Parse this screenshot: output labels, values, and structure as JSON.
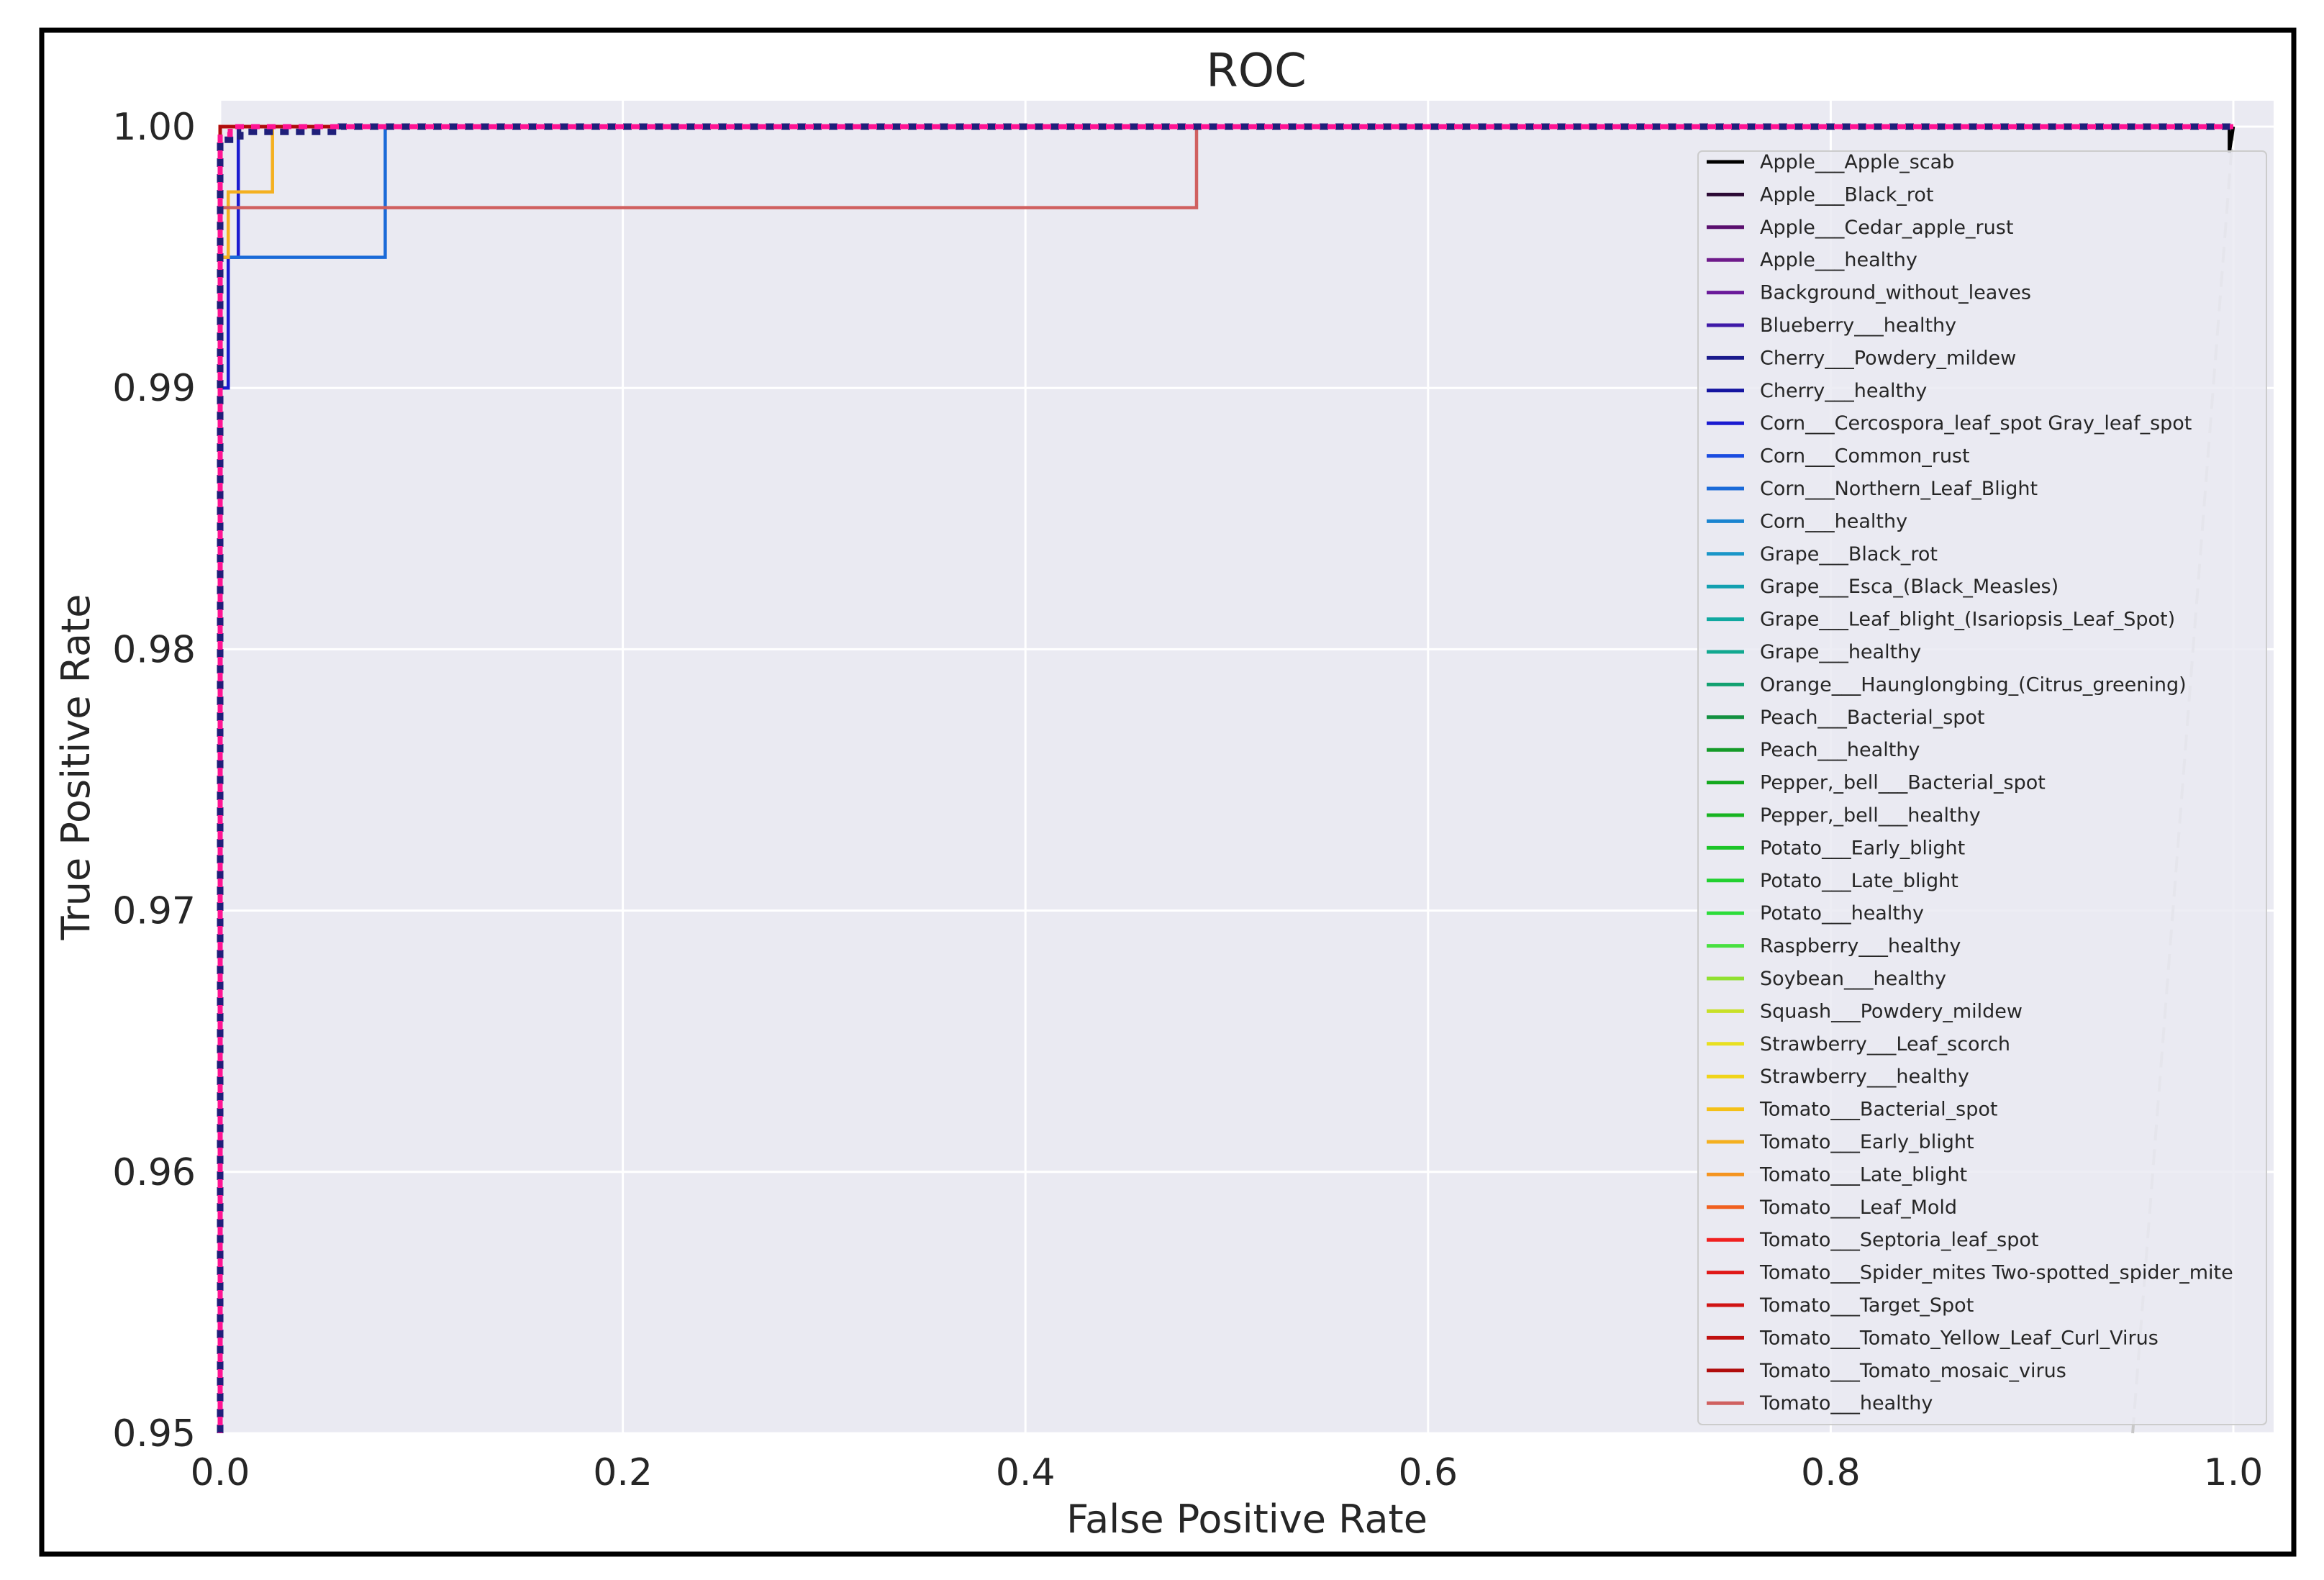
{
  "chart_data": {
    "type": "line",
    "title": "ROC",
    "xlabel": "False Positive Rate",
    "ylabel": "True Positive Rate",
    "xlim": [
      0.0,
      1.0
    ],
    "ylim": [
      0.95,
      1.0
    ],
    "xticks": [
      "0.0",
      "0.2",
      "0.4",
      "0.6",
      "0.8",
      "1.0"
    ],
    "xtick_values": [
      0.0,
      0.2,
      0.4,
      0.6,
      0.8,
      1.0
    ],
    "yticks": [
      "1.00",
      "0.99",
      "0.98",
      "0.97",
      "0.96",
      "0.95"
    ],
    "ytick_values": [
      1.0,
      0.99,
      0.98,
      0.97,
      0.96,
      0.95
    ],
    "grid": true,
    "legend_position": "right",
    "colors": {
      "background": "#eaeaf2",
      "grid": "#ffffff",
      "frame": "#000000",
      "chance_line": "#c8c8c8",
      "micro_avg": "#1f1f7a",
      "macro_avg": "#ff1493"
    },
    "series": [
      {
        "name": "Apple___Apple_scab",
        "color": "#000000",
        "points": [
          [
            0,
            0.95
          ],
          [
            0,
            1
          ],
          [
            0.998,
            1
          ],
          [
            0.998,
            0.999
          ],
          [
            1,
            1
          ]
        ]
      },
      {
        "name": "Apple___Black_rot",
        "color": "#2c0a35",
        "points": [
          [
            0,
            0.95
          ],
          [
            0,
            1
          ],
          [
            1,
            1
          ]
        ]
      },
      {
        "name": "Apple___Cedar_apple_rust",
        "color": "#5a0f6e",
        "points": [
          [
            0,
            0.95
          ],
          [
            0,
            1
          ],
          [
            1,
            1
          ]
        ]
      },
      {
        "name": "Apple___healthy",
        "color": "#6e1a8a",
        "points": [
          [
            0,
            0.95
          ],
          [
            0,
            1
          ],
          [
            1,
            1
          ]
        ]
      },
      {
        "name": "Background_without_leaves",
        "color": "#6a1a9a",
        "points": [
          [
            0,
            0.95
          ],
          [
            0,
            1
          ],
          [
            1,
            1
          ]
        ]
      },
      {
        "name": "Blueberry___healthy",
        "color": "#3f1aa8",
        "points": [
          [
            0,
            0.95
          ],
          [
            0,
            1
          ],
          [
            1,
            1
          ]
        ]
      },
      {
        "name": "Cherry___Powdery_mildew",
        "color": "#1a1a8c",
        "points": [
          [
            0,
            0.95
          ],
          [
            0,
            1
          ],
          [
            1,
            1
          ]
        ]
      },
      {
        "name": "Cherry___healthy",
        "color": "#1414a0",
        "points": [
          [
            0,
            0.95
          ],
          [
            0,
            1
          ],
          [
            1,
            1
          ]
        ]
      },
      {
        "name": "Corn___Cercospora_leaf_spot Gray_leaf_spot",
        "color": "#1a1ad0",
        "points": [
          [
            0,
            0.95
          ],
          [
            0,
            0.99
          ],
          [
            0.004,
            0.99
          ],
          [
            0.004,
            0.995
          ],
          [
            0.009,
            0.995
          ],
          [
            0.009,
            1
          ],
          [
            1,
            1
          ]
        ]
      },
      {
        "name": "Corn___Common_rust",
        "color": "#1a4ce0",
        "points": [
          [
            0,
            0.95
          ],
          [
            0,
            1
          ],
          [
            1,
            1
          ]
        ]
      },
      {
        "name": "Corn___Northern_Leaf_Blight",
        "color": "#1a6ad8",
        "points": [
          [
            0,
            0.95
          ],
          [
            0,
            0.995
          ],
          [
            0.082,
            0.995
          ],
          [
            0.082,
            1
          ],
          [
            1,
            1
          ]
        ]
      },
      {
        "name": "Corn___healthy",
        "color": "#1a84d0",
        "points": [
          [
            0,
            0.95
          ],
          [
            0,
            1
          ],
          [
            1,
            1
          ]
        ]
      },
      {
        "name": "Grape___Black_rot",
        "color": "#1a96c8",
        "points": [
          [
            0,
            0.95
          ],
          [
            0,
            1
          ],
          [
            1,
            1
          ]
        ]
      },
      {
        "name": "Grape___Esca_(Black_Measles)",
        "color": "#12a0b0",
        "points": [
          [
            0,
            0.95
          ],
          [
            0,
            1
          ],
          [
            1,
            1
          ]
        ]
      },
      {
        "name": "Grape___Leaf_blight_(Isariopsis_Leaf_Spot)",
        "color": "#10a8a0",
        "points": [
          [
            0,
            0.95
          ],
          [
            0,
            1
          ],
          [
            1,
            1
          ]
        ]
      },
      {
        "name": "Grape___healthy",
        "color": "#12a890",
        "points": [
          [
            0,
            0.95
          ],
          [
            0,
            1
          ],
          [
            1,
            1
          ]
        ]
      },
      {
        "name": "Orange___Haunglongbing_(Citrus_greening)",
        "color": "#12a070",
        "points": [
          [
            0,
            0.95
          ],
          [
            0,
            1
          ],
          [
            1,
            1
          ]
        ]
      },
      {
        "name": "Peach___Bacterial_spot",
        "color": "#129040",
        "points": [
          [
            0,
            0.95
          ],
          [
            0,
            1
          ],
          [
            1,
            1
          ]
        ]
      },
      {
        "name": "Peach___healthy",
        "color": "#149a28",
        "points": [
          [
            0,
            0.95
          ],
          [
            0,
            1
          ],
          [
            1,
            1
          ]
        ]
      },
      {
        "name": "Pepper,_bell___Bacterial_spot",
        "color": "#14a81e",
        "points": [
          [
            0,
            0.95
          ],
          [
            0,
            1
          ],
          [
            1,
            1
          ]
        ]
      },
      {
        "name": "Pepper,_bell___healthy",
        "color": "#18b422",
        "points": [
          [
            0,
            0.95
          ],
          [
            0,
            1
          ],
          [
            1,
            1
          ]
        ]
      },
      {
        "name": "Potato___Early_blight",
        "color": "#1cc428",
        "points": [
          [
            0,
            0.95
          ],
          [
            0,
            1
          ],
          [
            1,
            1
          ]
        ]
      },
      {
        "name": "Potato___Late_blight",
        "color": "#22d030",
        "points": [
          [
            0,
            0.95
          ],
          [
            0,
            1
          ],
          [
            1,
            1
          ]
        ]
      },
      {
        "name": "Potato___healthy",
        "color": "#2cdc3a",
        "points": [
          [
            0,
            0.95
          ],
          [
            0,
            1
          ],
          [
            1,
            1
          ]
        ]
      },
      {
        "name": "Raspberry___healthy",
        "color": "#48e040",
        "points": [
          [
            0,
            0.95
          ],
          [
            0,
            1
          ],
          [
            1,
            1
          ]
        ]
      },
      {
        "name": "Soybean___healthy",
        "color": "#90e030",
        "points": [
          [
            0,
            0.95
          ],
          [
            0,
            1
          ],
          [
            1,
            1
          ]
        ]
      },
      {
        "name": "Squash___Powdery_mildew",
        "color": "#c8e028",
        "points": [
          [
            0,
            0.95
          ],
          [
            0,
            1
          ],
          [
            1,
            1
          ]
        ]
      },
      {
        "name": "Strawberry___Leaf_scorch",
        "color": "#e8e020",
        "points": [
          [
            0,
            0.95
          ],
          [
            0,
            1
          ],
          [
            1,
            1
          ]
        ]
      },
      {
        "name": "Strawberry___healthy",
        "color": "#f0d418",
        "points": [
          [
            0,
            0.95
          ],
          [
            0,
            1
          ],
          [
            1,
            1
          ]
        ]
      },
      {
        "name": "Tomato___Bacterial_spot",
        "color": "#f4c018",
        "points": [
          [
            0,
            0.95
          ],
          [
            0,
            1
          ],
          [
            1,
            1
          ]
        ]
      },
      {
        "name": "Tomato___Early_blight",
        "color": "#f4b020",
        "points": [
          [
            0,
            0.95
          ],
          [
            0,
            0.995
          ],
          [
            0.004,
            0.995
          ],
          [
            0.004,
            0.9975
          ],
          [
            0.026,
            0.9975
          ],
          [
            0.026,
            1
          ],
          [
            1,
            1
          ]
        ]
      },
      {
        "name": "Tomato___Late_blight",
        "color": "#f49420",
        "points": [
          [
            0,
            0.95
          ],
          [
            0,
            1
          ],
          [
            1,
            1
          ]
        ]
      },
      {
        "name": "Tomato___Leaf_Mold",
        "color": "#f06020",
        "points": [
          [
            0,
            0.95
          ],
          [
            0,
            1
          ],
          [
            1,
            1
          ]
        ]
      },
      {
        "name": "Tomato___Septoria_leaf_spot",
        "color": "#f02020",
        "points": [
          [
            0,
            0.95
          ],
          [
            0,
            1
          ],
          [
            1,
            1
          ]
        ]
      },
      {
        "name": "Tomato___Spider_mites Two-spotted_spider_mite",
        "color": "#e01818",
        "points": [
          [
            0,
            0.95
          ],
          [
            0,
            1
          ],
          [
            1,
            1
          ]
        ]
      },
      {
        "name": "Tomato___Target_Spot",
        "color": "#d01414",
        "points": [
          [
            0,
            0.95
          ],
          [
            0,
            1
          ],
          [
            1,
            1
          ]
        ]
      },
      {
        "name": "Tomato___Tomato_Yellow_Leaf_Curl_Virus",
        "color": "#c01010",
        "points": [
          [
            0,
            0.95
          ],
          [
            0,
            1
          ],
          [
            1,
            1
          ]
        ]
      },
      {
        "name": "Tomato___Tomato_mosaic_virus",
        "color": "#b00c0c",
        "points": [
          [
            0,
            0.95
          ],
          [
            0,
            1
          ],
          [
            1,
            1
          ]
        ]
      },
      {
        "name": "Tomato___healthy",
        "color": "#d06060",
        "points": [
          [
            0,
            0.95
          ],
          [
            0,
            0.9969
          ],
          [
            0.485,
            0.9969
          ],
          [
            0.485,
            1
          ],
          [
            1,
            1
          ]
        ]
      }
    ],
    "micro_average": {
      "points": [
        [
          0,
          0.95
        ],
        [
          0,
          0.9995
        ],
        [
          0.01,
          0.9995
        ],
        [
          0.01,
          0.9998
        ],
        [
          0.06,
          0.9998
        ],
        [
          0.06,
          1
        ],
        [
          1,
          1
        ]
      ]
    },
    "macro_average": {
      "points": [
        [
          0,
          0.95
        ],
        [
          0,
          0.9997
        ],
        [
          0.005,
          0.9997
        ],
        [
          0.005,
          1
        ],
        [
          1,
          1
        ]
      ]
    },
    "chance_line": {
      "points": [
        [
          0.95,
          0.95
        ],
        [
          1.0,
          1.0
        ]
      ]
    }
  }
}
